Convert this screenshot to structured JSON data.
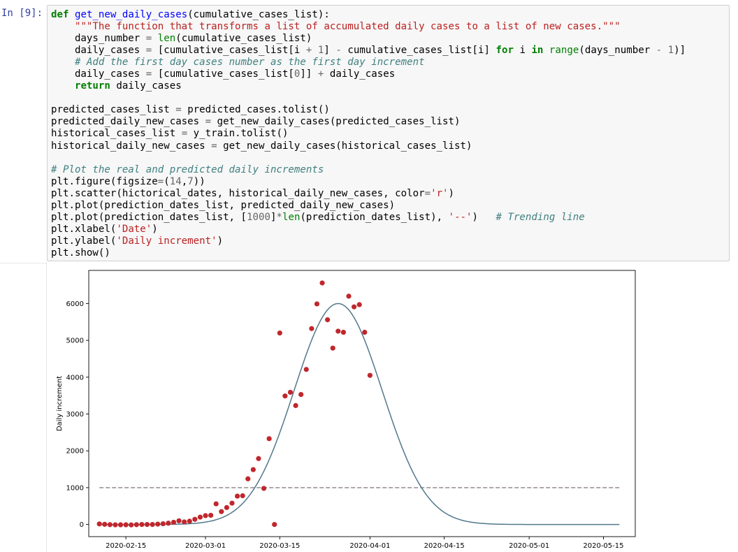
{
  "cell": {
    "prompt": "In [9]:",
    "code": [
      [
        [
          "kw",
          "def"
        ],
        [
          "t",
          " "
        ],
        [
          "fn",
          "get_new_daily_cases"
        ],
        [
          "t",
          "(cumulative_cases_list):"
        ]
      ],
      [
        [
          "t",
          "    "
        ],
        [
          "str",
          "\"\"\"The function that transforms a list of accumulated daily cases to a list of new cases.\"\"\""
        ]
      ],
      [
        [
          "t",
          "    days_number "
        ],
        [
          "op",
          "="
        ],
        [
          "t",
          " "
        ],
        [
          "bi",
          "len"
        ],
        [
          "t",
          "(cumulative_cases_list)"
        ]
      ],
      [
        [
          "t",
          "    daily_cases "
        ],
        [
          "op",
          "="
        ],
        [
          "t",
          " [cumulative_cases_list[i "
        ],
        [
          "op",
          "+"
        ],
        [
          "t",
          " "
        ],
        [
          "num",
          "1"
        ],
        [
          "t",
          "] "
        ],
        [
          "op",
          "-"
        ],
        [
          "t",
          " cumulative_cases_list[i] "
        ],
        [
          "kw",
          "for"
        ],
        [
          "t",
          " i "
        ],
        [
          "kw",
          "in"
        ],
        [
          "t",
          " "
        ],
        [
          "bi",
          "range"
        ],
        [
          "t",
          "(days_number "
        ],
        [
          "op",
          "-"
        ],
        [
          "t",
          " "
        ],
        [
          "num",
          "1"
        ],
        [
          "t",
          ")]"
        ]
      ],
      [
        [
          "t",
          "    "
        ],
        [
          "com",
          "# Add the first day cases number as the first day increment"
        ]
      ],
      [
        [
          "t",
          "    daily_cases "
        ],
        [
          "op",
          "="
        ],
        [
          "t",
          " [cumulative_cases_list["
        ],
        [
          "num",
          "0"
        ],
        [
          "t",
          "]] "
        ],
        [
          "op",
          "+"
        ],
        [
          "t",
          " daily_cases"
        ]
      ],
      [
        [
          "t",
          "    "
        ],
        [
          "kw",
          "return"
        ],
        [
          "t",
          " daily_cases"
        ]
      ],
      [],
      [
        [
          "t",
          "predicted_cases_list "
        ],
        [
          "op",
          "="
        ],
        [
          "t",
          " predicted_cases.tolist()"
        ]
      ],
      [
        [
          "t",
          "predicted_daily_new_cases "
        ],
        [
          "op",
          "="
        ],
        [
          "t",
          " get_new_daily_cases(predicted_cases_list)"
        ]
      ],
      [
        [
          "t",
          "historical_cases_list "
        ],
        [
          "op",
          "="
        ],
        [
          "t",
          " y_train.tolist()"
        ]
      ],
      [
        [
          "t",
          "historical_daily_new_cases "
        ],
        [
          "op",
          "="
        ],
        [
          "t",
          " get_new_daily_cases(historical_cases_list)"
        ]
      ],
      [],
      [
        [
          "com",
          "# Plot the real and predicted daily increments"
        ]
      ],
      [
        [
          "t",
          "plt.figure(figsize"
        ],
        [
          "op",
          "="
        ],
        [
          "t",
          "("
        ],
        [
          "num",
          "14"
        ],
        [
          "t",
          ","
        ],
        [
          "num",
          "7"
        ],
        [
          "t",
          "))"
        ]
      ],
      [
        [
          "t",
          "plt.scatter(hictorical_dates, historical_daily_new_cases, color"
        ],
        [
          "op",
          "="
        ],
        [
          "str",
          "'r'"
        ],
        [
          "t",
          ")"
        ]
      ],
      [
        [
          "t",
          "plt.plot(prediction_dates_list, predicted_daily_new_cases)"
        ]
      ],
      [
        [
          "t",
          "plt.plot(prediction_dates_list, ["
        ],
        [
          "num",
          "1000"
        ],
        [
          "t",
          "]"
        ],
        [
          "op",
          "*"
        ],
        [
          "bi",
          "len"
        ],
        [
          "t",
          "(prediction_dates_list), "
        ],
        [
          "str",
          "'--'"
        ],
        [
          "t",
          ")   "
        ],
        [
          "com",
          "# Trending line"
        ]
      ],
      [
        [
          "t",
          "plt.xlabel("
        ],
        [
          "str",
          "'Date'"
        ],
        [
          "t",
          ")"
        ]
      ],
      [
        [
          "t",
          "plt.ylabel("
        ],
        [
          "str",
          "'Daily increment'"
        ],
        [
          "t",
          ")"
        ]
      ],
      [
        [
          "t",
          "plt.show()"
        ]
      ]
    ]
  },
  "chart_data": {
    "type": "scatter",
    "xlabel": "",
    "ylabel": "Daily increment",
    "xlim": [
      "2020-02-08",
      "2020-05-21"
    ],
    "ylim": [
      -330,
      6900
    ],
    "x_ticks": [
      "2020-02-15",
      "2020-03-01",
      "2020-03-15",
      "2020-04-01",
      "2020-04-15",
      "2020-05-01",
      "2020-05-15"
    ],
    "y_ticks": [
      0,
      1000,
      2000,
      3000,
      4000,
      5000,
      6000
    ],
    "grid": false,
    "legend": "none",
    "colors": {
      "scatter": "#c0272d",
      "fit": "#51788c",
      "trend": "#8a7f80"
    },
    "series": [
      {
        "kind": "scatter",
        "points": [
          [
            "2020-02-10",
            15
          ],
          [
            "2020-02-11",
            5
          ],
          [
            "2020-02-12",
            -5
          ],
          [
            "2020-02-13",
            -10
          ],
          [
            "2020-02-14",
            -8
          ],
          [
            "2020-02-15",
            -8
          ],
          [
            "2020-02-16",
            -12
          ],
          [
            "2020-02-17",
            -5
          ],
          [
            "2020-02-18",
            0
          ],
          [
            "2020-02-19",
            0
          ],
          [
            "2020-02-20",
            0
          ],
          [
            "2020-02-21",
            10
          ],
          [
            "2020-02-22",
            20
          ],
          [
            "2020-02-23",
            35
          ],
          [
            "2020-02-24",
            60
          ],
          [
            "2020-02-25",
            100
          ],
          [
            "2020-02-26",
            70
          ],
          [
            "2020-02-27",
            90
          ],
          [
            "2020-02-28",
            140
          ],
          [
            "2020-02-29",
            200
          ],
          [
            "2020-03-01",
            240
          ],
          [
            "2020-03-02",
            250
          ],
          [
            "2020-03-03",
            560
          ],
          [
            "2020-03-04",
            350
          ],
          [
            "2020-03-05",
            460
          ],
          [
            "2020-03-06",
            580
          ],
          [
            "2020-03-07",
            770
          ],
          [
            "2020-03-08",
            780
          ],
          [
            "2020-03-09",
            1240
          ],
          [
            "2020-03-10",
            1490
          ],
          [
            "2020-03-11",
            1790
          ],
          [
            "2020-03-12",
            980
          ],
          [
            "2020-03-13",
            2330
          ],
          [
            "2020-03-14",
            0
          ],
          [
            "2020-03-15",
            5200
          ],
          [
            "2020-03-16",
            3490
          ],
          [
            "2020-03-17",
            3590
          ],
          [
            "2020-03-18",
            3230
          ],
          [
            "2020-03-19",
            3530
          ],
          [
            "2020-03-20",
            4210
          ],
          [
            "2020-03-21",
            5320
          ],
          [
            "2020-03-22",
            5990
          ],
          [
            "2020-03-23",
            6560
          ],
          [
            "2020-03-24",
            5560
          ],
          [
            "2020-03-25",
            4790
          ],
          [
            "2020-03-26",
            5250
          ],
          [
            "2020-03-27",
            5220
          ],
          [
            "2020-03-28",
            6200
          ],
          [
            "2020-03-29",
            5910
          ],
          [
            "2020-03-30",
            5970
          ],
          [
            "2020-03-31",
            5220
          ],
          [
            "2020-04-01",
            4050
          ]
        ]
      },
      {
        "kind": "line",
        "model": "gaussian",
        "peak_date": "2020-03-26",
        "peak_value": 6000,
        "sigma_days": 8.3,
        "x_range": [
          "2020-02-10",
          "2020-05-18"
        ]
      },
      {
        "kind": "dashed-line",
        "value": 1000,
        "x_range": [
          "2020-02-10",
          "2020-05-18"
        ]
      }
    ]
  }
}
